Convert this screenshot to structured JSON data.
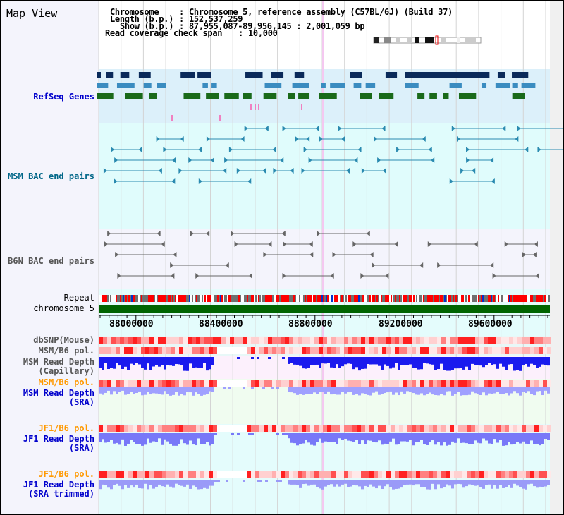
{
  "title": "Map View",
  "info": {
    "chromosome_label": "Chromosome",
    "chromosome_value": "Chromosome 5, reference assembly (C57BL/6J) (Build 37)",
    "length_label": "Length (b.p.)",
    "length_value": "152,537,259",
    "show_label": "Show (b.p.)",
    "show_value": "87,955,087-89,956,145 : 2,001,059 bp",
    "coverage_label": "Read coverage check span",
    "coverage_value": "10,000"
  },
  "tracks": {
    "refseq": "RefSeq Genes",
    "msm_bac": "MSM BAC end pairs",
    "b6n_bac": "B6N BAC end pairs",
    "repeat": "Repeat",
    "chromosome": "chromosome 5",
    "dbsnp": "dbSNP(Mouse)",
    "msm_pol1": "MSM/B6 pol.",
    "msm_cap": "MSM Read Depth\n(Capillary)",
    "msm_pol2": "MSM/B6 pol.",
    "msm_sra": "MSM Read Depth\n(SRA)",
    "jf1_pol1": "JF1/B6 pol.",
    "jf1_sra": "JF1 Read Depth\n(SRA)",
    "jf1_pol2": "JF1/B6 pol.",
    "jf1_trim": "JF1 Read Depth\n(SRA trimmed)"
  },
  "axis": {
    "ticks": [
      "88000000",
      "88400000",
      "88800000",
      "89200000",
      "89600000"
    ]
  },
  "colors": {
    "refseq_label": "#0000cc",
    "msm_bac_label": "#006688",
    "gray_label": "#555555",
    "orange_label": "#ff9900",
    "blue_label": "#0000cc",
    "chromosome_bar": "#006400"
  }
}
